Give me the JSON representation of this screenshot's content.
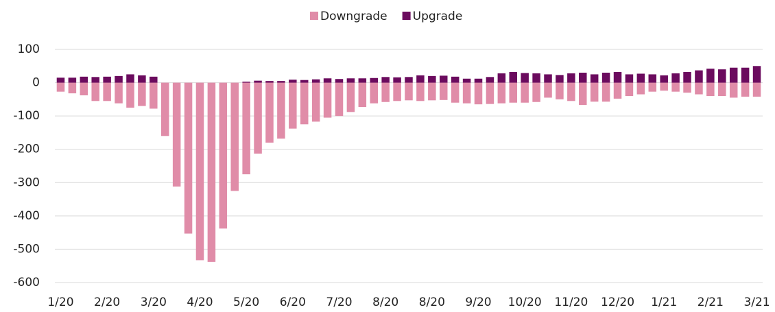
{
  "chart_data": {
    "type": "stacked_bar",
    "categories": [
      "1/20",
      null,
      null,
      null,
      "2/20",
      null,
      null,
      null,
      "3/20",
      null,
      null,
      null,
      "4/20",
      null,
      null,
      null,
      "5/20",
      null,
      null,
      null,
      "6/20",
      null,
      null,
      null,
      "7/20",
      null,
      null,
      null,
      "8/20",
      null,
      null,
      null,
      "8/20",
      null,
      null,
      null,
      "9/20",
      null,
      null,
      null,
      "10/20",
      null,
      null,
      null,
      "11/20",
      null,
      null,
      null,
      "12/20",
      null,
      null,
      null,
      "1/21",
      null,
      null,
      null,
      "2/21",
      null,
      null,
      null,
      "3/21"
    ],
    "series": [
      {
        "name": "Downgrade",
        "color": "#e08ca8",
        "values": [
          -27,
          -32,
          -38,
          -55,
          -55,
          -62,
          -75,
          -70,
          -78,
          -160,
          -312,
          -453,
          -533,
          -538,
          -438,
          -325,
          -275,
          -213,
          -180,
          -168,
          -138,
          -125,
          -117,
          -105,
          -100,
          -88,
          -73,
          -62,
          -58,
          -55,
          -53,
          -55,
          -53,
          -52,
          -60,
          -62,
          -65,
          -64,
          -62,
          -60,
          -60,
          -58,
          -45,
          -50,
          -55,
          -67,
          -57,
          -57,
          -48,
          -40,
          -35,
          -27,
          -24,
          -27,
          -30,
          -35,
          -40,
          -40,
          -45,
          -42,
          -42
        ]
      },
      {
        "name": "Upgrade",
        "color": "#6b0b5e",
        "values": [
          15,
          15,
          18,
          17,
          18,
          20,
          25,
          22,
          18,
          0,
          0,
          0,
          0,
          0,
          0,
          0,
          3,
          6,
          5,
          5,
          9,
          8,
          10,
          13,
          11,
          13,
          13,
          14,
          17,
          16,
          17,
          22,
          20,
          21,
          18,
          12,
          12,
          17,
          28,
          32,
          29,
          28,
          25,
          23,
          28,
          30,
          25,
          30,
          32,
          25,
          27,
          25,
          22,
          28,
          32,
          37,
          42,
          40,
          45,
          45,
          50
        ]
      }
    ],
    "ylim": [
      -600,
      100
    ],
    "yticks": [
      100,
      0,
      -100,
      -200,
      -300,
      -400,
      -500,
      -600
    ],
    "grid": true,
    "legend": "top"
  }
}
